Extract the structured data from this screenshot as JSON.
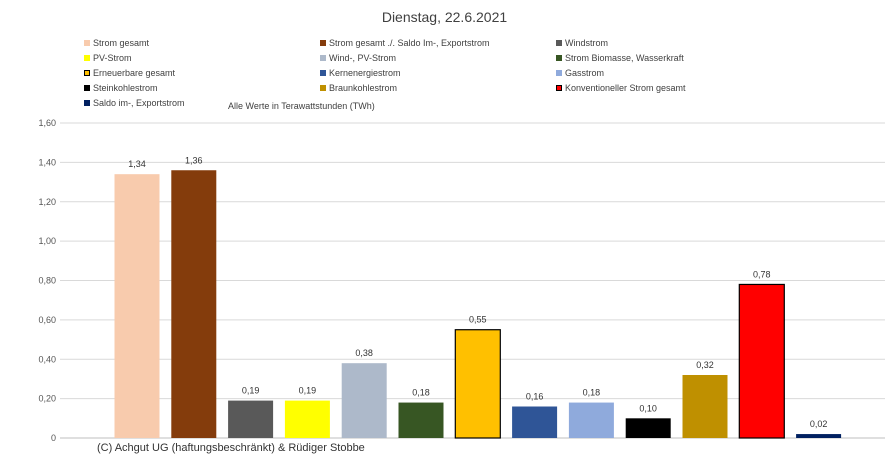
{
  "title": "Dienstag, 22.6.2021",
  "note": "Alle Werte in Terawattstunden (TWh)",
  "footer": "(C) Achgut UG (haftungsbeschränkt) & Rüdiger Stobbe",
  "legend": [
    {
      "label": "Strom gesamt",
      "color": "#f8cbad"
    },
    {
      "label": "Strom gesamt ./. Saldo Im-, Exportstrom",
      "color": "#843c0c"
    },
    {
      "label": "Windstrom",
      "color": "#595959"
    },
    {
      "label": "PV-Strom",
      "color": "#ffff00"
    },
    {
      "label": "Wind-, PV-Strom",
      "color": "#adb9ca"
    },
    {
      "label": "Strom Biomasse, Wasserkraft",
      "color": "#375623"
    },
    {
      "label": "Erneuerbare gesamt",
      "color": "#ffc000"
    },
    {
      "label": "Kernenergiestrom",
      "color": "#2f5597"
    },
    {
      "label": "Gasstrom",
      "color": "#8faadc"
    },
    {
      "label": "Steinkohlestrom",
      "color": "#000000"
    },
    {
      "label": "Braunkohlestrom",
      "color": "#bf9000"
    },
    {
      "label": "Konventioneller Strom gesamt",
      "color": "#ff0000"
    },
    {
      "label": "Saldo im-, Exportstrom",
      "color": "#002060"
    }
  ],
  "chart_data": {
    "type": "bar",
    "title": "Dienstag, 22.6.2021",
    "ylim": [
      0,
      1.6
    ],
    "yticks": [
      "0",
      "0,20",
      "0,40",
      "0,60",
      "0,80",
      "1,00",
      "1,20",
      "1,40",
      "1,60"
    ],
    "grid": true,
    "legend_position": "top",
    "categories": [
      "Strom gesamt",
      "Strom gesamt ./. Saldo Im-, Exportstrom",
      "Windstrom",
      "PV-Strom",
      "Wind-, PV-Strom",
      "Strom Biomasse, Wasserkraft",
      "Erneuerbare gesamt",
      "Kernenergiestrom",
      "Gasstrom",
      "Steinkohlestrom",
      "Braunkohlestrom",
      "Konventioneller Strom gesamt",
      "Saldo im-, Exportstrom"
    ],
    "values": [
      1.34,
      1.36,
      0.19,
      0.19,
      0.38,
      0.18,
      0.55,
      0.16,
      0.18,
      0.1,
      0.32,
      0.78,
      0.02
    ],
    "value_labels": [
      "1,34",
      "1,36",
      "0,19",
      "0,19",
      "0,38",
      "0,18",
      "0,55",
      "0,16",
      "0,18",
      "0,10",
      "0,32",
      "0,78",
      "0,02"
    ],
    "colors": [
      "#f8cbad",
      "#843c0c",
      "#595959",
      "#ffff00",
      "#adb9ca",
      "#375623",
      "#ffc000",
      "#2f5597",
      "#8faadc",
      "#000000",
      "#bf9000",
      "#ff0000",
      "#002060"
    ],
    "outlined": [
      false,
      false,
      false,
      false,
      false,
      false,
      true,
      false,
      false,
      false,
      false,
      true,
      false
    ]
  }
}
